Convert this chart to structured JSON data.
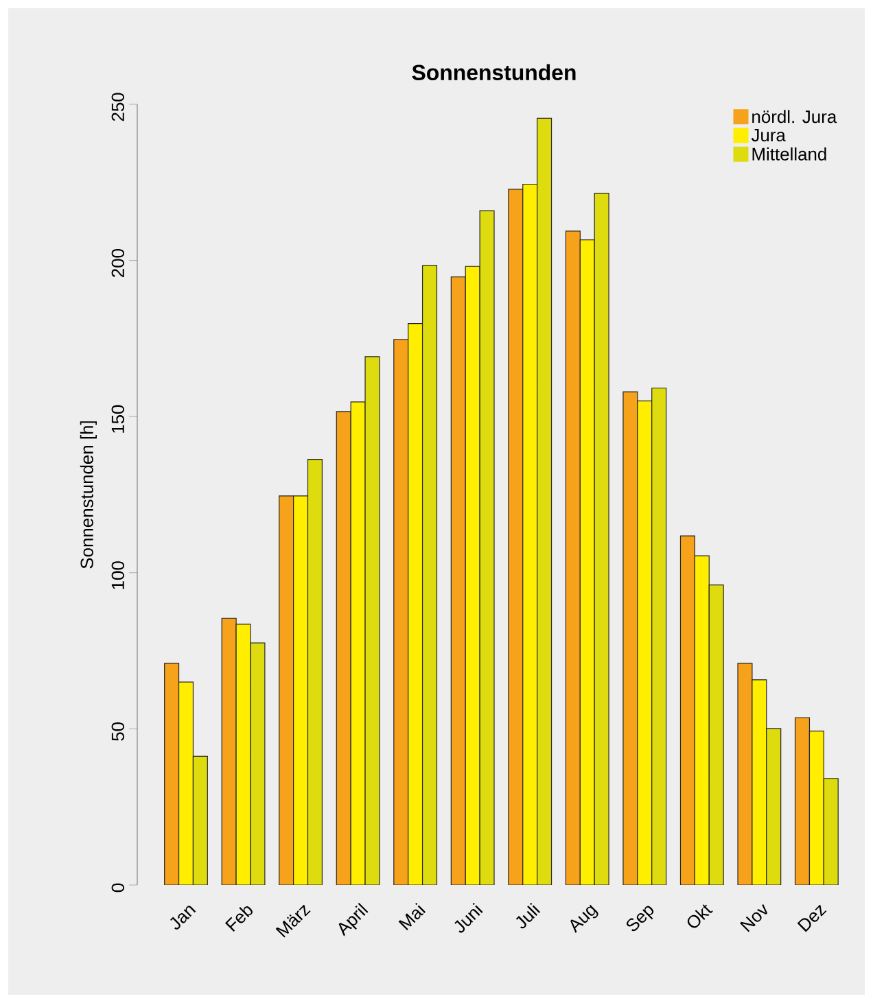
{
  "chart_data": {
    "type": "bar",
    "title": "Sonnenstunden",
    "ylabel": "Sonnenstunden [h]",
    "categories": [
      "Jan",
      "Feb",
      "März",
      "April",
      "Mai",
      "Juni",
      "Juli",
      "Aug",
      "Sep",
      "Okt",
      "Nov",
      "Dez"
    ],
    "series": [
      {
        "name": "nördl. Jura",
        "color": "#f7a21b",
        "values": [
          71,
          85.4,
          124.6,
          151.6,
          174.7,
          194.7,
          222.8,
          209.4,
          157.9,
          111.8,
          71,
          53.6
        ]
      },
      {
        "name": "Jura",
        "color": "#ffee00",
        "values": [
          65,
          83.5,
          124.6,
          154.7,
          179.8,
          198.1,
          224.4,
          206.6,
          155,
          105.4,
          65.7,
          49.3
        ]
      },
      {
        "name": "Mittelland",
        "color": "#dedb0e",
        "values": [
          41.2,
          77.5,
          136.3,
          169.2,
          198.4,
          215.9,
          245.5,
          221.5,
          159.1,
          96.1,
          50.1,
          34.1
        ]
      }
    ],
    "ylim": [
      0,
      250
    ],
    "yticks": [
      0,
      50,
      100,
      150,
      200,
      250
    ],
    "legend": "top right"
  }
}
